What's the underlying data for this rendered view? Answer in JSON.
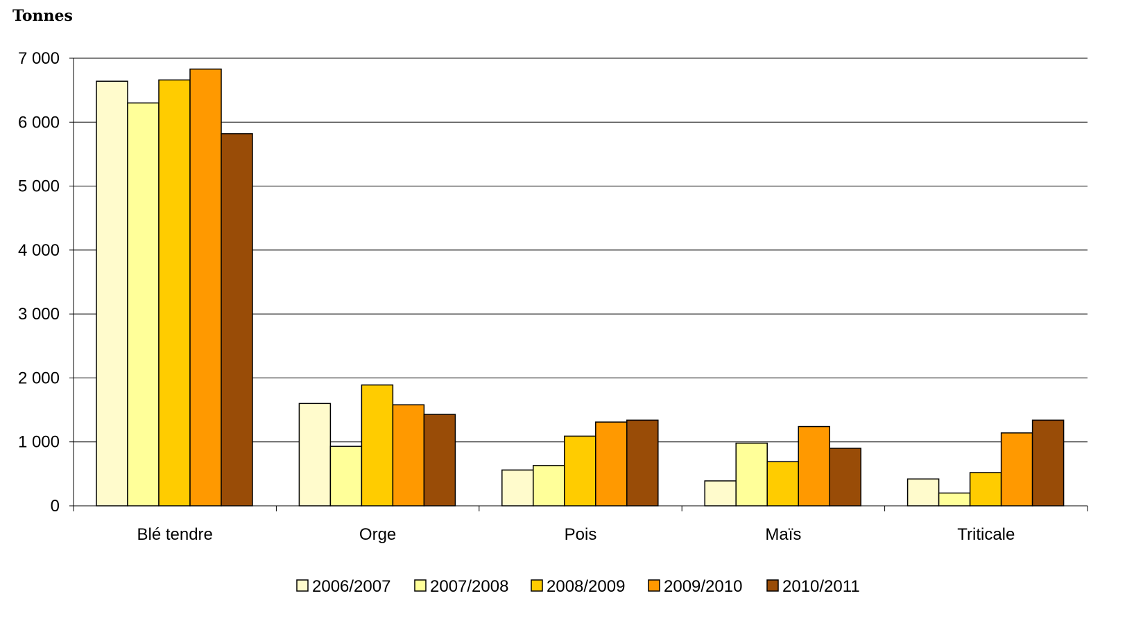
{
  "chart_data": {
    "type": "bar",
    "title": "",
    "ylabel": "Tonnes",
    "xlabel": "",
    "ylim": [
      0,
      7000
    ],
    "y_ticks": [
      0,
      1000,
      2000,
      3000,
      4000,
      5000,
      6000,
      7000
    ],
    "y_tick_labels": [
      "0",
      "1 000",
      "2 000",
      "3 000",
      "4 000",
      "5 000",
      "6 000",
      "7 000"
    ],
    "grid": true,
    "legend_position": "bottom",
    "categories": [
      "Blé tendre",
      "Orge",
      "Pois",
      "Maïs",
      "Triticale"
    ],
    "series": [
      {
        "name": "2006/2007",
        "color": "#FFFBCC",
        "values": [
          6640,
          1600,
          560,
          390,
          420
        ]
      },
      {
        "name": "2007/2008",
        "color": "#FFFF99",
        "values": [
          6300,
          930,
          630,
          980,
          200
        ]
      },
      {
        "name": "2008/2009",
        "color": "#FFCC00",
        "values": [
          6660,
          1890,
          1090,
          690,
          520
        ]
      },
      {
        "name": "2009/2010",
        "color": "#FF9900",
        "values": [
          6830,
          1580,
          1310,
          1240,
          1140
        ]
      },
      {
        "name": "2010/2011",
        "color": "#994C07",
        "values": [
          5820,
          1430,
          1340,
          900,
          1340
        ]
      }
    ]
  }
}
